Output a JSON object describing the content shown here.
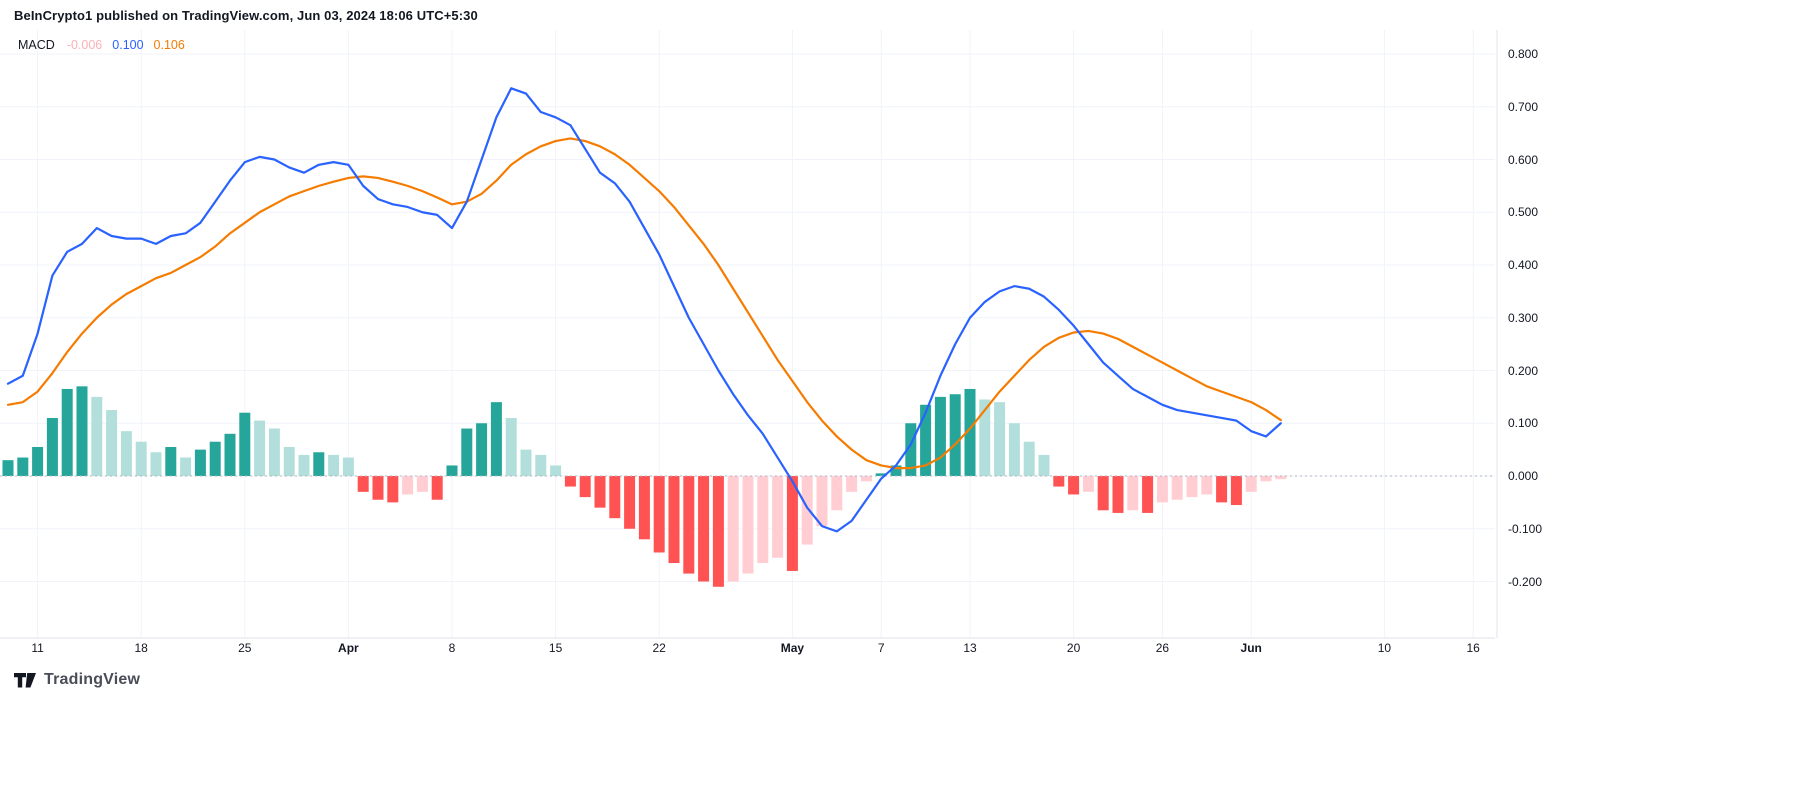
{
  "header": {
    "attribution": "BeInCrypto1 published on TradingView.com, Jun 03, 2024 18:06 UTC+5:30"
  },
  "indicator": {
    "name": "MACD",
    "values": [
      {
        "name": "histogram",
        "text": "-0.006",
        "color": "#FBB1B7"
      },
      {
        "name": "macd_line",
        "text": "0.100",
        "color": "#2962FF"
      },
      {
        "name": "signal_line",
        "text": "0.106",
        "color": "#F57C00"
      }
    ]
  },
  "footer": {
    "brand": "TradingView"
  },
  "colors": {
    "hist_pos_grow": "#26A69A",
    "hist_pos_fall": "#B2DFDB",
    "hist_neg_fall": "#FF5252",
    "hist_neg_grow": "#FFCDD2",
    "macd_line": "#2962FF",
    "signal_line": "#F57C00",
    "grid": "#F0F3FA",
    "zero_line": "#B2B5BE",
    "border": "#E0E3EB",
    "axis_text": "#131722"
  },
  "chart_data": {
    "type": "bar",
    "subtype": "macd-indicator",
    "title": "MACD",
    "xlabel": "",
    "ylabel": "",
    "grid": true,
    "legend_position": "top-left",
    "zero_line": "dashed",
    "ylim": [
      -0.31,
      0.85
    ],
    "x": [
      "Mar 9",
      "Mar 10",
      "Mar 11",
      "Mar 12",
      "Mar 13",
      "Mar 14",
      "Mar 15",
      "Mar 16",
      "Mar 17",
      "Mar 18",
      "Mar 19",
      "Mar 20",
      "Mar 21",
      "Mar 22",
      "Mar 23",
      "Mar 24",
      "Mar 25",
      "Mar 26",
      "Mar 27",
      "Mar 28",
      "Mar 29",
      "Mar 30",
      "Mar 31",
      "Apr 1",
      "Apr 2",
      "Apr 3",
      "Apr 4",
      "Apr 5",
      "Apr 6",
      "Apr 7",
      "Apr 8",
      "Apr 9",
      "Apr 10",
      "Apr 11",
      "Apr 12",
      "Apr 13",
      "Apr 14",
      "Apr 15",
      "Apr 16",
      "Apr 17",
      "Apr 18",
      "Apr 19",
      "Apr 20",
      "Apr 21",
      "Apr 22",
      "Apr 23",
      "Apr 24",
      "Apr 25",
      "Apr 26",
      "Apr 27",
      "Apr 28",
      "Apr 29",
      "Apr 30",
      "May 1",
      "May 2",
      "May 3",
      "May 4",
      "May 5",
      "May 6",
      "May 7",
      "May 8",
      "May 9",
      "May 10",
      "May 11",
      "May 12",
      "May 13",
      "May 14",
      "May 15",
      "May 16",
      "May 17",
      "May 18",
      "May 19",
      "May 20",
      "May 21",
      "May 22",
      "May 23",
      "May 24",
      "May 25",
      "May 26",
      "May 27",
      "May 28",
      "May 29",
      "May 30",
      "May 31",
      "Jun 1",
      "Jun 2",
      "Jun 3"
    ],
    "series": [
      {
        "name": "Histogram",
        "type": "bar",
        "values": [
          0.03,
          0.035,
          0.055,
          0.11,
          0.165,
          0.17,
          0.15,
          0.125,
          0.085,
          0.065,
          0.045,
          0.055,
          0.035,
          0.05,
          0.065,
          0.08,
          0.12,
          0.105,
          0.09,
          0.055,
          0.04,
          0.045,
          0.04,
          0.035,
          -0.03,
          -0.045,
          -0.05,
          -0.035,
          -0.03,
          -0.045,
          0.02,
          0.09,
          0.1,
          0.14,
          0.11,
          0.05,
          0.04,
          0.02,
          -0.02,
          -0.04,
          -0.06,
          -0.08,
          -0.1,
          -0.12,
          -0.145,
          -0.165,
          -0.185,
          -0.2,
          -0.21,
          -0.2,
          -0.185,
          -0.165,
          -0.155,
          -0.18,
          -0.13,
          -0.095,
          -0.065,
          -0.03,
          -0.01,
          0.005,
          0.02,
          0.1,
          0.135,
          0.15,
          0.155,
          0.165,
          0.145,
          0.14,
          0.1,
          0.065,
          0.04,
          -0.02,
          -0.035,
          -0.03,
          -0.065,
          -0.07,
          -0.065,
          -0.07,
          -0.05,
          -0.045,
          -0.04,
          -0.035,
          -0.05,
          -0.055,
          -0.03,
          -0.01,
          -0.006
        ]
      },
      {
        "name": "MACD line",
        "type": "line",
        "color": "#2962FF",
        "values": [
          0.175,
          0.19,
          0.27,
          0.38,
          0.425,
          0.44,
          0.47,
          0.455,
          0.45,
          0.45,
          0.44,
          0.455,
          0.46,
          0.48,
          0.52,
          0.56,
          0.595,
          0.605,
          0.6,
          0.585,
          0.575,
          0.59,
          0.595,
          0.59,
          0.55,
          0.525,
          0.515,
          0.51,
          0.5,
          0.495,
          0.47,
          0.52,
          0.6,
          0.68,
          0.735,
          0.725,
          0.69,
          0.68,
          0.665,
          0.62,
          0.575,
          0.555,
          0.52,
          0.47,
          0.42,
          0.36,
          0.3,
          0.25,
          0.2,
          0.155,
          0.115,
          0.08,
          0.035,
          -0.01,
          -0.06,
          -0.095,
          -0.105,
          -0.085,
          -0.045,
          -0.005,
          0.02,
          0.06,
          0.12,
          0.19,
          0.25,
          0.3,
          0.33,
          0.35,
          0.36,
          0.355,
          0.34,
          0.315,
          0.285,
          0.25,
          0.215,
          0.19,
          0.165,
          0.15,
          0.135,
          0.125,
          0.12,
          0.115,
          0.11,
          0.105,
          0.085,
          0.075,
          0.1
        ]
      },
      {
        "name": "Signal line",
        "type": "line",
        "color": "#F57C00",
        "values": [
          0.135,
          0.14,
          0.16,
          0.195,
          0.235,
          0.27,
          0.3,
          0.325,
          0.345,
          0.36,
          0.375,
          0.385,
          0.4,
          0.415,
          0.435,
          0.46,
          0.48,
          0.5,
          0.515,
          0.53,
          0.54,
          0.55,
          0.558,
          0.565,
          0.568,
          0.565,
          0.558,
          0.55,
          0.54,
          0.528,
          0.515,
          0.52,
          0.535,
          0.56,
          0.59,
          0.61,
          0.625,
          0.635,
          0.64,
          0.635,
          0.625,
          0.61,
          0.59,
          0.565,
          0.54,
          0.51,
          0.475,
          0.44,
          0.4,
          0.355,
          0.31,
          0.265,
          0.22,
          0.18,
          0.14,
          0.105,
          0.075,
          0.05,
          0.03,
          0.02,
          0.015,
          0.015,
          0.02,
          0.035,
          0.06,
          0.09,
          0.125,
          0.16,
          0.19,
          0.22,
          0.245,
          0.262,
          0.272,
          0.275,
          0.27,
          0.26,
          0.245,
          0.23,
          0.215,
          0.2,
          0.185,
          0.17,
          0.16,
          0.15,
          0.14,
          0.125,
          0.106
        ]
      }
    ],
    "y_ticks": [
      {
        "v": 0.8,
        "label": "0.800"
      },
      {
        "v": 0.7,
        "label": "0.700"
      },
      {
        "v": 0.6,
        "label": "0.600"
      },
      {
        "v": 0.5,
        "label": "0.500"
      },
      {
        "v": 0.4,
        "label": "0.400"
      },
      {
        "v": 0.3,
        "label": "0.300"
      },
      {
        "v": 0.2,
        "label": "0.200"
      },
      {
        "v": 0.1,
        "label": "0.100"
      },
      {
        "v": 0.0,
        "label": "0.000"
      },
      {
        "v": -0.1,
        "label": "-0.100"
      },
      {
        "v": -0.2,
        "label": "-0.200"
      }
    ],
    "x_ticks": [
      {
        "label": "11",
        "i": 2,
        "major": false
      },
      {
        "label": "18",
        "i": 9,
        "major": false
      },
      {
        "label": "25",
        "i": 16,
        "major": false
      },
      {
        "label": "Apr",
        "i": 23,
        "major": true
      },
      {
        "label": "8",
        "i": 30,
        "major": false
      },
      {
        "label": "15",
        "i": 37,
        "major": false
      },
      {
        "label": "22",
        "i": 44,
        "major": false
      },
      {
        "label": "May",
        "i": 53,
        "major": true
      },
      {
        "label": "7",
        "i": 59,
        "major": false
      },
      {
        "label": "13",
        "i": 65,
        "major": false
      },
      {
        "label": "20",
        "i": 72,
        "major": false
      },
      {
        "label": "26",
        "i": 78,
        "major": false
      },
      {
        "label": "Jun",
        "i": 84,
        "major": true
      },
      {
        "label": "10",
        "i": 93,
        "major": false
      },
      {
        "label": "16",
        "i": 99,
        "major": false
      }
    ]
  }
}
